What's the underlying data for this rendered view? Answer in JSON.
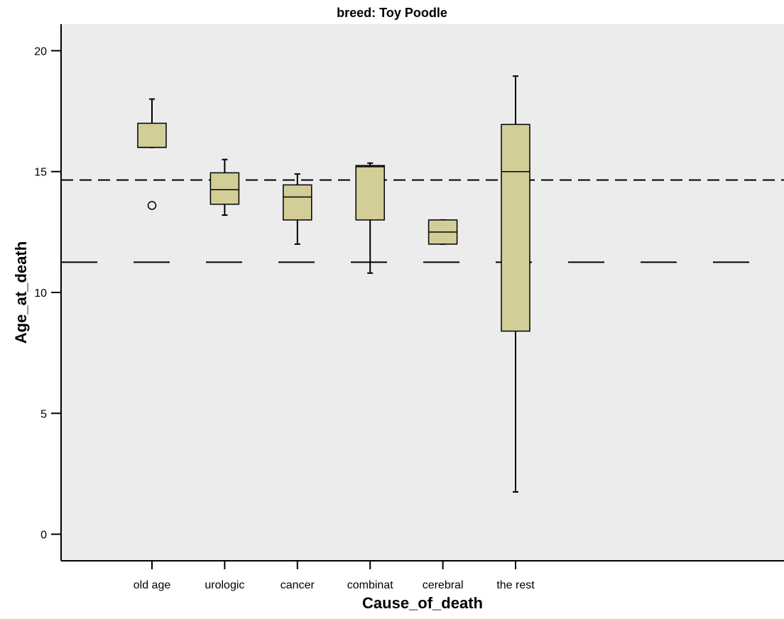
{
  "chart_data": {
    "type": "box",
    "title": "breed: Toy Poodle",
    "xlabel": "Cause_of_death",
    "ylabel": "Age_at_death",
    "ylim": [
      -1.1,
      21.1
    ],
    "yticks": [
      0,
      5,
      10,
      15,
      20
    ],
    "categories": [
      "old age",
      "urologic",
      "cancer",
      "combinat",
      "cerebral",
      "the rest"
    ],
    "boxes": [
      {
        "category": "old age",
        "whisker_low": 16.0,
        "q1": 16.0,
        "median": 16.0,
        "q3": 17.0,
        "whisker_high": 18.0,
        "outliers": [
          13.6
        ]
      },
      {
        "category": "urologic",
        "whisker_low": 13.2,
        "q1": 13.65,
        "median": 14.25,
        "q3": 14.95,
        "whisker_high": 15.5,
        "outliers": []
      },
      {
        "category": "cancer",
        "whisker_low": 12.0,
        "q1": 13.0,
        "median": 13.95,
        "q3": 14.45,
        "whisker_high": 14.9,
        "outliers": []
      },
      {
        "category": "combinat",
        "whisker_low": 10.8,
        "q1": 13.0,
        "median": 15.2,
        "q3": 15.25,
        "whisker_high": 15.35,
        "outliers": []
      },
      {
        "category": "cerebral",
        "whisker_low": 12.0,
        "q1": 12.0,
        "median": 12.5,
        "q3": 13.0,
        "whisker_high": 13.0,
        "outliers": []
      },
      {
        "category": "the rest",
        "whisker_low": 1.75,
        "q1": 8.4,
        "median": 15.0,
        "q3": 16.95,
        "whisker_high": 18.95,
        "outliers": []
      }
    ],
    "reference_lines": [
      {
        "y": 14.65,
        "style": "short-dash"
      },
      {
        "y": 11.25,
        "style": "long-dash"
      }
    ],
    "colors": {
      "box_fill": "#d3cd98",
      "plot_background": "#ececec",
      "stroke": "#000000"
    },
    "grid": false,
    "legend": "none"
  }
}
